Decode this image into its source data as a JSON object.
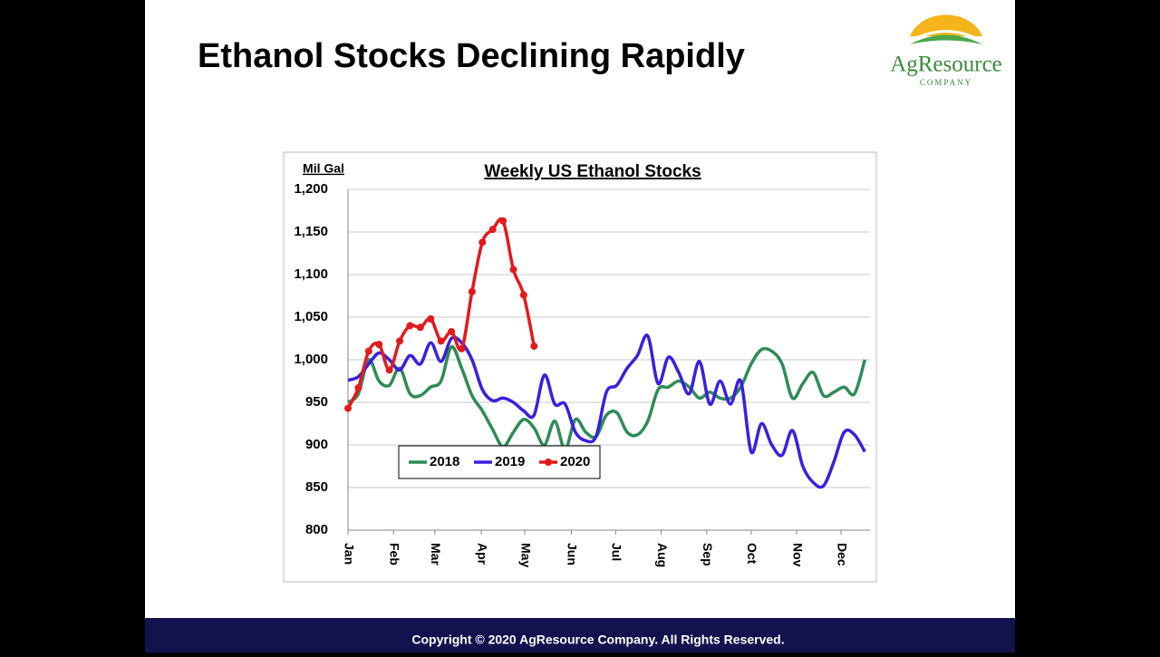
{
  "slide": {
    "title": "Ethanol Stocks Declining Rapidly",
    "footer": "Copyright © 2020 AgResource Company.  All Rights Reserved."
  },
  "logo": {
    "name": "AgResource",
    "tagline": "COMPANY"
  },
  "chart_data": {
    "type": "line",
    "title": "Weekly US Ethanol Stocks",
    "y_label": "Mil Gal",
    "x": [
      0,
      1,
      2,
      3,
      4,
      5,
      6,
      7,
      8,
      9,
      10,
      11,
      12,
      13,
      14,
      15,
      16,
      17,
      18,
      19,
      20,
      21,
      22,
      23,
      24,
      25,
      26,
      27,
      28,
      29,
      30,
      31,
      32,
      33,
      34,
      35,
      36,
      37,
      38,
      39,
      40,
      41,
      42,
      43,
      44,
      45,
      46,
      47,
      48,
      49,
      50
    ],
    "xlim": [
      0,
      50.5
    ],
    "xticks": [
      {
        "value": 0,
        "label": "Jan"
      },
      {
        "value": 4.4,
        "label": "Feb"
      },
      {
        "value": 8.4,
        "label": "Mar"
      },
      {
        "value": 12.9,
        "label": "Apr"
      },
      {
        "value": 17.1,
        "label": "May"
      },
      {
        "value": 21.6,
        "label": "Jun"
      },
      {
        "value": 25.9,
        "label": "Jul"
      },
      {
        "value": 30.3,
        "label": "Aug"
      },
      {
        "value": 34.7,
        "label": "Sep"
      },
      {
        "value": 39,
        "label": "Oct"
      },
      {
        "value": 43.4,
        "label": "Nov"
      },
      {
        "value": 47.7,
        "label": "Dec"
      }
    ],
    "ylim": [
      800,
      1200
    ],
    "yticks": [
      800,
      850,
      900,
      950,
      {
        "value": 1000,
        "label": "1,000"
      },
      {
        "value": 1050,
        "label": "1,050"
      },
      {
        "value": 1100,
        "label": "1,100"
      },
      {
        "value": 1150,
        "label": "1,150"
      },
      {
        "value": 1200,
        "label": "1,200"
      }
    ],
    "grid": true,
    "series": [
      {
        "name": "2018",
        "color": "#2e8b57",
        "markers": false,
        "values": [
          950,
          960,
          1000,
          975,
          970,
          990,
          960,
          958,
          968,
          975,
          1015,
          990,
          958,
          940,
          918,
          898,
          915,
          930,
          920,
          900,
          928,
          895,
          930,
          915,
          910,
          935,
          938,
          915,
          912,
          928,
          965,
          968,
          975,
          968,
          955,
          962,
          955,
          955,
          968,
          995,
          1012,
          1010,
          995,
          955,
          972,
          985,
          958,
          962,
          968,
          960,
          1000
        ]
      },
      {
        "name": "2019",
        "color": "#3a1fe0",
        "markers": false,
        "values": [
          976,
          980,
          995,
          1008,
          1000,
          988,
          1005,
          995,
          1020,
          998,
          1025,
          1020,
          1000,
          965,
          952,
          955,
          950,
          940,
          935,
          982,
          948,
          948,
          915,
          905,
          910,
          962,
          970,
          990,
          1005,
          1028,
          972,
          1003,
          985,
          960,
          998,
          948,
          975,
          948,
          975,
          892,
          925,
          900,
          888,
          917,
          875,
          856,
          852,
          880,
          915,
          912,
          892
        ]
      },
      {
        "name": "2020",
        "color": "#e31a1c",
        "markers": true,
        "values": [
          943,
          967,
          1010,
          1018,
          988,
          1022,
          1040,
          1038,
          1048,
          1022,
          1033,
          1013,
          1080,
          1138,
          1153,
          1163,
          1106,
          1076,
          1016,
          null,
          null,
          null,
          null,
          null,
          null,
          null,
          null,
          null,
          null,
          null,
          null,
          null,
          null,
          null,
          null,
          null,
          null,
          null,
          null,
          null,
          null,
          null,
          null,
          null,
          null,
          null,
          null,
          null,
          null,
          null,
          null
        ]
      }
    ]
  }
}
